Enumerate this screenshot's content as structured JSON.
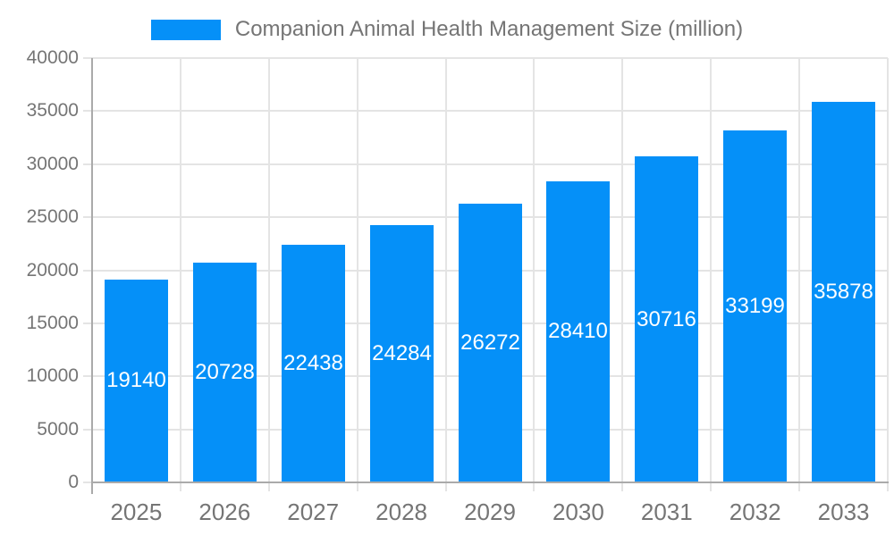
{
  "legend": {
    "label": "Companion Animal Health Management Size (million)"
  },
  "chart_data": {
    "type": "bar",
    "title": "Companion Animal Health Management Size (million)",
    "series_name": "Companion Animal Health Management Size (million)",
    "categories": [
      "2025",
      "2026",
      "2027",
      "2028",
      "2029",
      "2030",
      "2031",
      "2032",
      "2033"
    ],
    "values": [
      19140,
      20728,
      22438,
      24284,
      26272,
      28410,
      30716,
      33199,
      35878
    ],
    "xlabel": "",
    "ylabel": "",
    "ylim": [
      0,
      40000
    ],
    "ytick_step": 5000,
    "ytick_labels": [
      "0",
      "5000",
      "10000",
      "15000",
      "20000",
      "25000",
      "30000",
      "35000",
      "40000"
    ],
    "grid": true,
    "legend_position": "top",
    "value_label_position": "inside-center"
  },
  "colors": {
    "bar": "#0590f8",
    "grid": "#e4e4e4",
    "axis": "#aaaaaa",
    "tick_text": "#757575",
    "value_text": "#ffffff",
    "background": "#ffffff"
  }
}
